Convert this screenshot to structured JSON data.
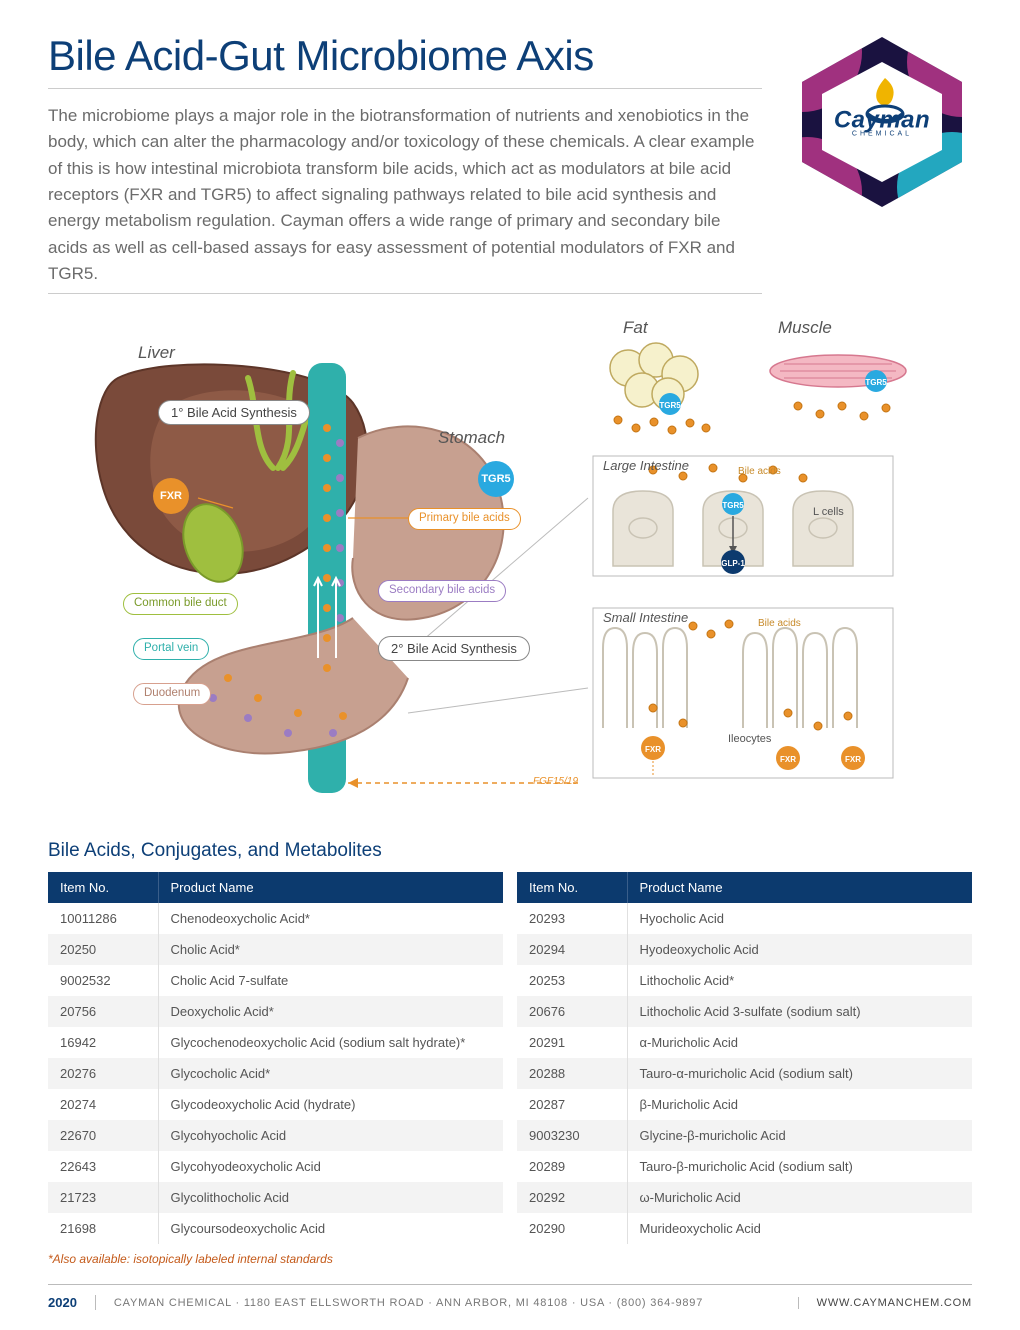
{
  "page": {
    "title": "Bile Acid-Gut Microbiome Axis",
    "intro": "The microbiome plays a major role in the biotransformation of nutrients and xenobiotics in the body, which can alter the pharmacology and/or toxicology of these chemicals. A clear example of this is how intestinal microbiota transform bile acids, which act as modulators at bile acid receptors (FXR and TGR5) to affect signaling pathways related to bile acid synthesis and energy metabolism regulation. Cayman offers a wide range of primary and secondary bile acids as well as cell-based assays for easy assessment of potential modulators of FXR and TGR5."
  },
  "logo": {
    "brand": "Cayman",
    "sub": "CHEMICAL"
  },
  "colors": {
    "navy": "#0c3a6e",
    "heading": "#0d3f77",
    "orange": "#e9912a",
    "blue": "#29a9e0",
    "teal": "#2fb0ab",
    "purple": "#9b7cc3",
    "salmon": "#d7a08e",
    "liver": "#7a4a3a",
    "stomach": "#c7a090",
    "magenta": "#c23a8e",
    "cyan": "#26c2d6",
    "green": "#9fbf3f",
    "fat": "#f6f1cc",
    "muscle": "#f4b8c3",
    "cell": "#e9e4d9"
  },
  "diagram": {
    "organ_labels": {
      "liver": "Liver",
      "stomach": "Stomach",
      "fat": "Fat",
      "muscle": "Muscle"
    },
    "pills": {
      "primary_synth": "1° Bile Acid Synthesis",
      "secondary_synth": "2° Bile Acid Synthesis"
    },
    "small": {
      "primary_ba": "Primary bile acids",
      "secondary_ba": "Secondary bile acids",
      "common_duct": "Common bile duct",
      "portal_vein": "Portal vein",
      "duodenum": "Duodenum"
    },
    "circles": {
      "fxr": "FXR",
      "tgr5": "TGR5"
    },
    "panels": {
      "large": {
        "title": "Large Intestine",
        "bile": "Bile acids",
        "lcells": "L cells",
        "glp1": "GLP-1",
        "tgr5": "TGR5"
      },
      "small": {
        "title": "Small Intestine",
        "bile": "Bile acids",
        "ileo": "Ileocytes",
        "fxr": "FXR",
        "fgf": "FGF15/19"
      }
    }
  },
  "table": {
    "heading": "Bile Acids, Conjugates, and Metabolites",
    "columns": [
      "Item No.",
      "Product Name"
    ],
    "left": [
      [
        "10011286",
        "Chenodeoxycholic Acid*"
      ],
      [
        "20250",
        "Cholic Acid*"
      ],
      [
        "9002532",
        "Cholic Acid 7-sulfate"
      ],
      [
        "20756",
        "Deoxycholic Acid*"
      ],
      [
        "16942",
        "Glycochenodeoxycholic Acid (sodium salt hydrate)*"
      ],
      [
        "20276",
        "Glycocholic Acid*"
      ],
      [
        "20274",
        "Glycodeoxycholic Acid (hydrate)"
      ],
      [
        "22670",
        "Glycohyocholic Acid"
      ],
      [
        "22643",
        "Glycohyodeoxycholic Acid"
      ],
      [
        "21723",
        "Glycolithocholic Acid"
      ],
      [
        "21698",
        "Glycoursodeoxycholic Acid"
      ]
    ],
    "right": [
      [
        "20293",
        "Hyocholic Acid"
      ],
      [
        "20294",
        "Hyodeoxycholic Acid"
      ],
      [
        "20253",
        "Lithocholic Acid*"
      ],
      [
        "20676",
        "Lithocholic Acid 3-sulfate (sodium salt)"
      ],
      [
        "20291",
        "α-Muricholic Acid"
      ],
      [
        "20288",
        "Tauro-α-muricholic Acid (sodium salt)"
      ],
      [
        "20287",
        "β-Muricholic Acid"
      ],
      [
        "9003230",
        "Glycine-β-muricholic Acid"
      ],
      [
        "20289",
        "Tauro-β-muricholic Acid (sodium salt)"
      ],
      [
        "20292",
        "ω-Muricholic Acid"
      ],
      [
        "20290",
        "Murideoxycholic Acid"
      ]
    ],
    "footnote": "*Also available: isotopically labeled internal standards"
  },
  "footer": {
    "year": "2020",
    "address": "CAYMAN CHEMICAL · 1180 EAST ELLSWORTH ROAD · ANN ARBOR, MI 48108 · USA · (800) 364-9897",
    "url": "WWW.CAYMANCHEM.COM"
  }
}
